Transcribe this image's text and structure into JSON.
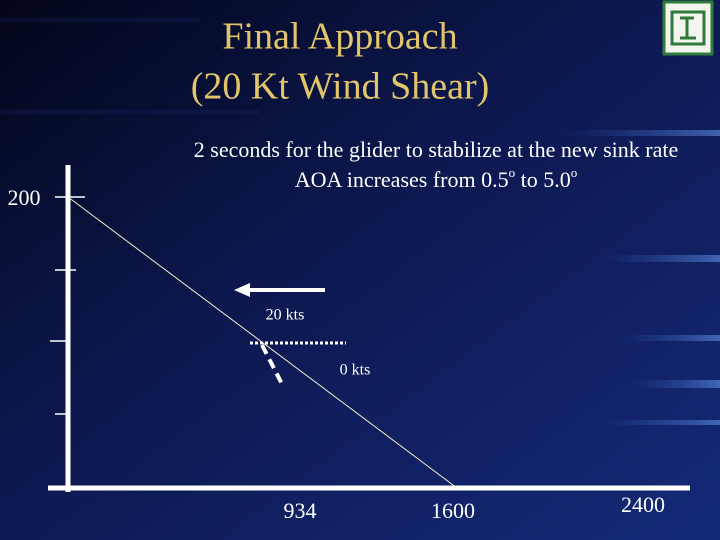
{
  "header": {
    "title_lines": [
      "Final Approach",
      "(20 Kt Wind Shear)"
    ]
  },
  "subtitle": {
    "line1": "2 seconds for the glider to stabilize at the new sink rate",
    "line2": [
      "AOA increases from 0.5",
      "o",
      " to 5.0",
      "o"
    ]
  },
  "diagram": {
    "labels": {
      "wind_before": "20 kts",
      "wind_after": "0 kts"
    },
    "y_label": "200",
    "x_labels": [
      "934",
      "1600",
      "2400"
    ]
  }
}
